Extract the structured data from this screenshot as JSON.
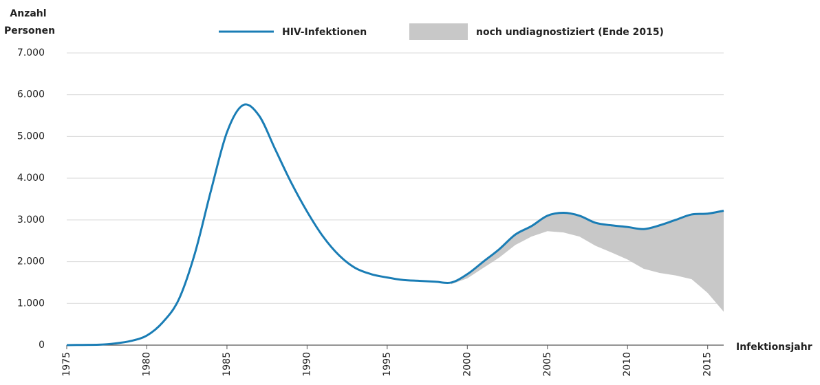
{
  "chart_data": {
    "type": "line",
    "y_label": "Anzahl Personen",
    "x_label": "Infektionsjahr",
    "x": [
      1975,
      1976,
      1977,
      1978,
      1979,
      1980,
      1981,
      1982,
      1983,
      1984,
      1985,
      1986,
      1987,
      1988,
      1989,
      1990,
      1991,
      1992,
      1993,
      1994,
      1995,
      1996,
      1997,
      1998,
      1999,
      2000,
      2001,
      2002,
      2003,
      2004,
      2005,
      2006,
      2007,
      2008,
      2009,
      2010,
      2011,
      2012,
      2013,
      2014,
      2015,
      2016
    ],
    "series": [
      {
        "name": "HIV-Infektionen",
        "color": "#1a7db5",
        "values": [
          0,
          5,
          10,
          40,
          100,
          230,
          550,
          1100,
          2200,
          3700,
          5100,
          5750,
          5500,
          4700,
          3900,
          3200,
          2600,
          2150,
          1850,
          1700,
          1620,
          1560,
          1540,
          1520,
          1500,
          1700,
          2000,
          2300,
          2650,
          2850,
          3100,
          3170,
          3100,
          2930,
          2870,
          2830,
          2780,
          2870,
          3000,
          3130,
          3150,
          3220
        ]
      },
      {
        "name": "noch undiagnostiziert (Ende 2015)",
        "color": "#c8c8c8",
        "values": [
          null,
          null,
          null,
          null,
          null,
          null,
          null,
          null,
          null,
          null,
          null,
          null,
          null,
          null,
          null,
          null,
          null,
          null,
          null,
          null,
          null,
          null,
          null,
          null,
          1460,
          1600,
          1850,
          2100,
          2400,
          2600,
          2730,
          2700,
          2600,
          2380,
          2220,
          2050,
          1830,
          1730,
          1670,
          1580,
          1250,
          800
        ]
      }
    ],
    "xlim": [
      1975,
      2016
    ],
    "xticks": [
      1975,
      1980,
      1985,
      1990,
      1995,
      2000,
      2005,
      2010,
      2015
    ],
    "ylim": [
      0,
      7000
    ],
    "yticks": [
      0,
      {
        "value": 1000,
        "label": "1.000"
      },
      {
        "value": 2000,
        "label": "2.000"
      },
      {
        "value": 3000,
        "label": "3.000"
      },
      {
        "value": 4000,
        "label": "4.000"
      },
      {
        "value": 5000,
        "label": "5.000"
      },
      {
        "value": 6000,
        "label": "6.000"
      },
      {
        "value": 7000,
        "label": "7.000"
      }
    ],
    "grid": true
  }
}
